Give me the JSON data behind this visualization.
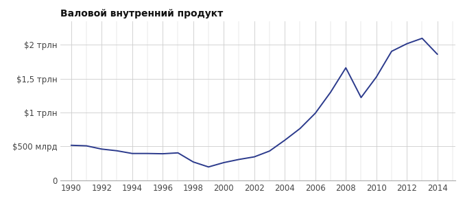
{
  "title": "Валовой внутренний продукт",
  "years": [
    1990,
    1991,
    1992,
    1993,
    1994,
    1995,
    1996,
    1997,
    1998,
    1999,
    2000,
    2001,
    2002,
    2003,
    2004,
    2005,
    2006,
    2007,
    2008,
    2009,
    2010,
    2011,
    2012,
    2013,
    2014
  ],
  "gdp": [
    516,
    508,
    460,
    435,
    395,
    395,
    391,
    404,
    270,
    196,
    260,
    307,
    345,
    431,
    591,
    764,
    990,
    1300,
    1661,
    1222,
    1525,
    1905,
    2017,
    2097,
    1861
  ],
  "line_color": "#2b3a8c",
  "background_color": "#ffffff",
  "grid_color": "#cccccc",
  "title_fontsize": 10,
  "tick_fontsize": 8.5,
  "yticks": [
    0,
    500,
    1000,
    1500,
    2000
  ],
  "ytick_labels": [
    "0",
    "$500 млрд",
    "$1 трлн",
    "$1,5 трлн",
    "$2 трлн"
  ],
  "xticks": [
    1990,
    1992,
    1994,
    1996,
    1998,
    2000,
    2002,
    2004,
    2006,
    2008,
    2010,
    2012,
    2014
  ],
  "xlim": [
    1989.3,
    2015.2
  ],
  "ylim": [
    0,
    2350
  ]
}
